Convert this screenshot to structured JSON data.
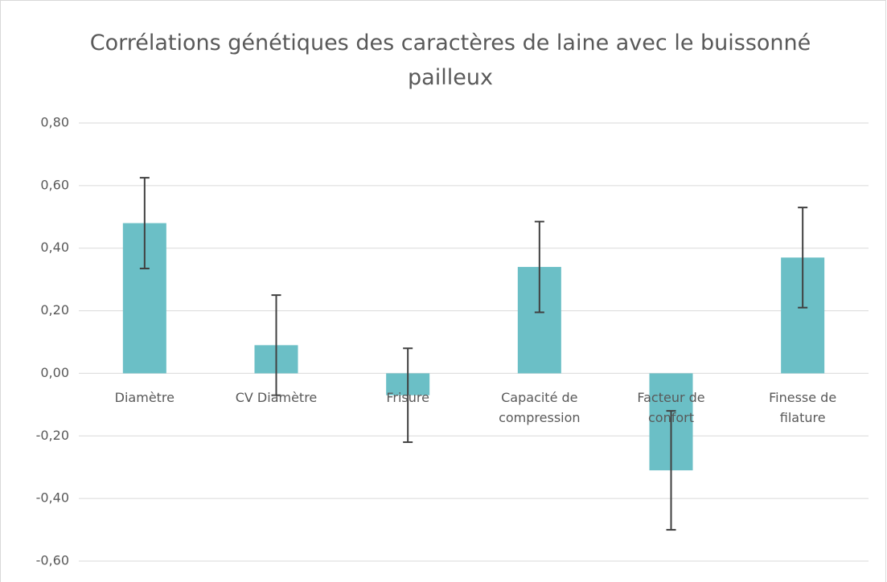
{
  "chart_data": {
    "type": "bar",
    "title": "Corrélations génétiques des caractères de laine avec le buissonné pailleux",
    "categories": [
      "Diamètre",
      "CV Diamètre",
      "Frisure",
      "Capacité de compression",
      "Facteur de confort",
      "Finesse de filature"
    ],
    "values": [
      0.48,
      0.09,
      -0.07,
      0.34,
      -0.31,
      0.37
    ],
    "errors": [
      0.145,
      0.16,
      0.15,
      0.145,
      0.19,
      0.16
    ],
    "color": "#6bbfc6",
    "error_color": "#404040",
    "ylim": [
      -0.6,
      0.8
    ],
    "yticks": [
      {
        "value": -0.6,
        "label": "-0,60"
      },
      {
        "value": -0.4,
        "label": "-0,40"
      },
      {
        "value": -0.2,
        "label": "-0,20"
      },
      {
        "value": 0,
        "label": "0,00"
      },
      {
        "value": 0.2,
        "label": "0,20"
      },
      {
        "value": 0.4,
        "label": "0,40"
      },
      {
        "value": 0.6,
        "label": "0,60"
      },
      {
        "value": 0.8,
        "label": "0,80"
      }
    ],
    "grid": true
  }
}
